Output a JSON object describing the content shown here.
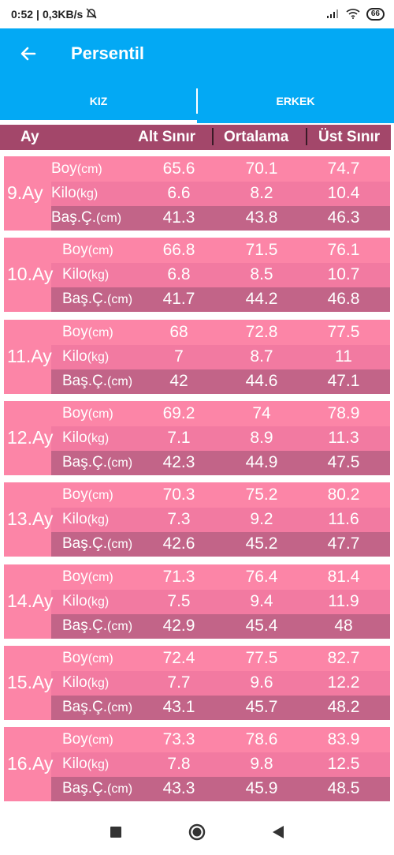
{
  "status_bar": {
    "time": "0:52",
    "speed": "0,3KB/s",
    "battery": "66",
    "icons": [
      "alarm-off-icon",
      "signal-icon",
      "wifi-icon",
      "battery-icon"
    ]
  },
  "app_bar": {
    "title": "Persentil",
    "back_icon": "arrow-left-icon"
  },
  "tabs": [
    {
      "label": "KIZ",
      "active": true
    },
    {
      "label": "ERKEK",
      "active": false
    }
  ],
  "table_header": {
    "ay": "Ay",
    "alt": "Alt Sınır",
    "ort": "Ortalama",
    "ust": "Üst Sınır"
  },
  "row_labels": [
    {
      "name": "Boy",
      "unit": "(cm)"
    },
    {
      "name": "Kilo",
      "unit": "(kg)"
    },
    {
      "name": "Baş.Ç.",
      "unit": "(cm)"
    }
  ],
  "months": [
    {
      "label": "9.Ay",
      "rows": [
        [
          "65.6",
          "70.1",
          "74.7"
        ],
        [
          "6.6",
          "8.2",
          "10.4"
        ],
        [
          "41.3",
          "43.8",
          "46.3"
        ]
      ]
    },
    {
      "label": "10.Ay",
      "rows": [
        [
          "66.8",
          "71.5",
          "76.1"
        ],
        [
          "6.8",
          "8.5",
          "10.7"
        ],
        [
          "41.7",
          "44.2",
          "46.8"
        ]
      ]
    },
    {
      "label": "11.Ay",
      "rows": [
        [
          "68",
          "72.8",
          "77.5"
        ],
        [
          "7",
          "8.7",
          "11"
        ],
        [
          "42",
          "44.6",
          "47.1"
        ]
      ]
    },
    {
      "label": "12.Ay",
      "rows": [
        [
          "69.2",
          "74",
          "78.9"
        ],
        [
          "7.1",
          "8.9",
          "11.3"
        ],
        [
          "42.3",
          "44.9",
          "47.5"
        ]
      ]
    },
    {
      "label": "13.Ay",
      "rows": [
        [
          "70.3",
          "75.2",
          "80.2"
        ],
        [
          "7.3",
          "9.2",
          "11.6"
        ],
        [
          "42.6",
          "45.2",
          "47.7"
        ]
      ]
    },
    {
      "label": "14.Ay",
      "rows": [
        [
          "71.3",
          "76.4",
          "81.4"
        ],
        [
          "7.5",
          "9.4",
          "11.9"
        ],
        [
          "42.9",
          "45.4",
          "48"
        ]
      ]
    },
    {
      "label": "15.Ay",
      "rows": [
        [
          "72.4",
          "77.5",
          "82.7"
        ],
        [
          "7.7",
          "9.6",
          "12.2"
        ],
        [
          "43.1",
          "45.7",
          "48.2"
        ]
      ]
    },
    {
      "label": "16.Ay",
      "rows": [
        [
          "73.3",
          "78.6",
          "83.9"
        ],
        [
          "7.8",
          "9.8",
          "12.5"
        ],
        [
          "43.3",
          "45.9",
          "48.5"
        ]
      ]
    }
  ],
  "colors": {
    "primary": "#03a9f4",
    "header": "#a3476a",
    "card": "#fc85a7",
    "row_dark": "#c26488"
  },
  "nav_bar": {
    "icons": [
      "recent-apps-icon",
      "home-icon",
      "back-icon"
    ]
  }
}
